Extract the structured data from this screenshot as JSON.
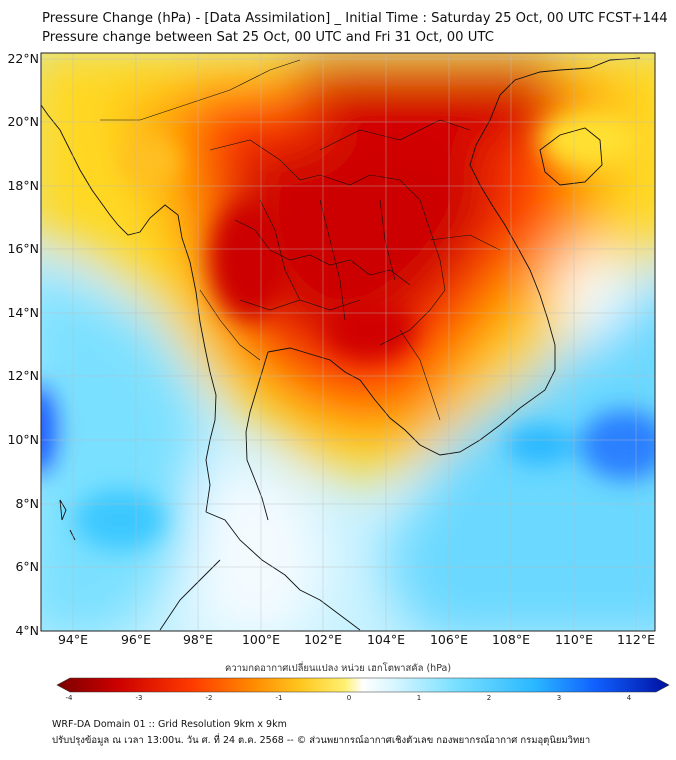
{
  "header": {
    "title_line1": "Pressure Change (hPa) - [Data Assimilation] _ Initial Time : Saturday 25 Oct, 00 UTC FCST+144",
    "title_line2": "Pressure change between Sat 25 Oct, 00 UTC and Fri 31 Oct, 00 UTC"
  },
  "map": {
    "lat_ticks": [
      "22°N",
      "20°N",
      "18°N",
      "16°N",
      "14°N",
      "12°N",
      "10°N",
      "8°N",
      "6°N",
      "4°N"
    ],
    "lon_ticks": [
      "94°E",
      "96°E",
      "98°E",
      "100°E",
      "102°E",
      "104°E",
      "106°E",
      "108°E",
      "110°E",
      "112°E"
    ],
    "lat_range": [
      4,
      22.2
    ],
    "lon_range": [
      93,
      112.7
    ],
    "colors": {
      "strong_fall": "#cc0000",
      "fall": "#ff3a00",
      "moderate_fall": "#ffa000",
      "slight_fall": "#ffe830",
      "neutral": "#ffffff",
      "rise": "#6ad8ff",
      "strong_rise": "#1555ff"
    }
  },
  "colorbar": {
    "label": "ความกดอากาศเปลี่ยนแปลง หน่วย เฮกโตพาสคัล (hPa)",
    "ticks": [
      "-4",
      "-3",
      "-2",
      "-1",
      "0",
      "1",
      "2",
      "3",
      "4"
    ],
    "min": -4,
    "max": 4
  },
  "footer": {
    "line1": "WRF-DA Domain 01 :: Grid Resolution 9km x 9km",
    "line2": "ปรับปรุงข้อมูล ณ เวลา 13:00น. วัน ศ. ที่ 24 ต.ค. 2568 -- © ส่วนพยากรณ์อากาศเชิงตัวเลข กองพยากรณ์อากาศ กรมอุตุนิยมวิทยา"
  }
}
